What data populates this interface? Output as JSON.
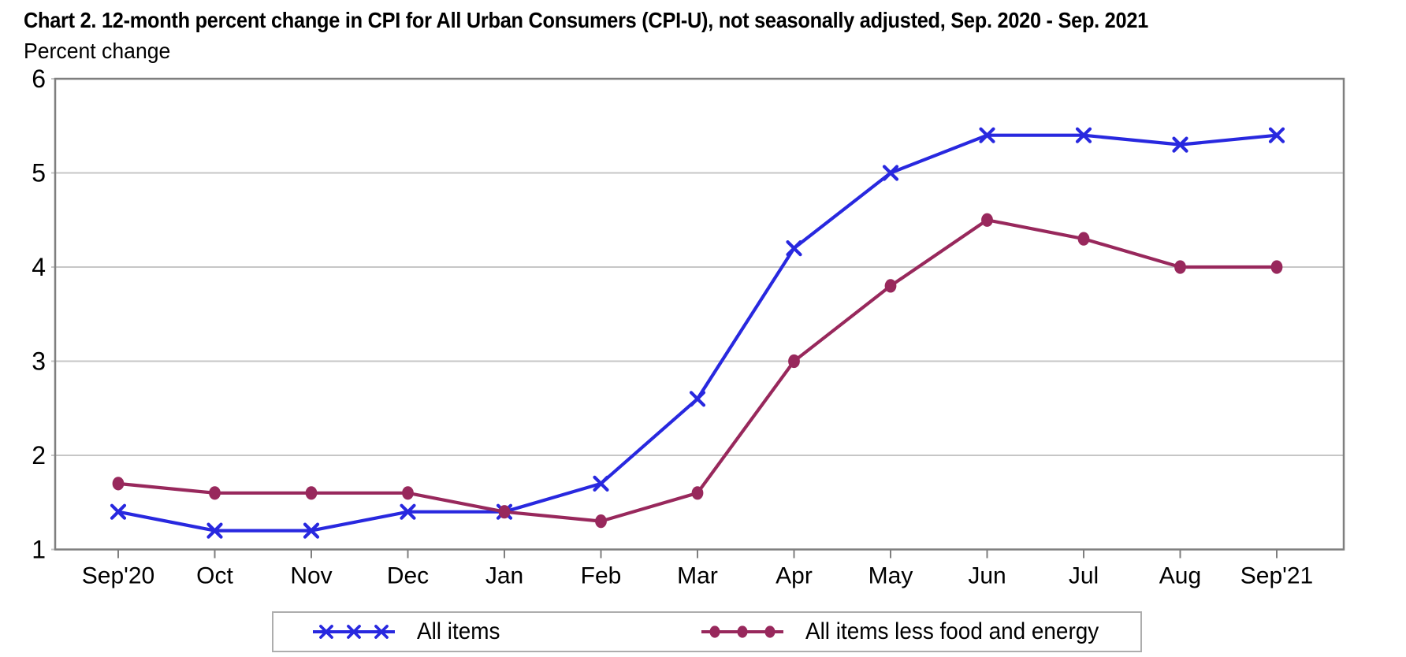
{
  "header": {
    "title": "Chart 2. 12-month percent change in CPI for All Urban Consumers (CPI-U), not seasonally adjusted, Sep. 2020 - Sep. 2021",
    "unit_label": "Percent change"
  },
  "chart_data": {
    "type": "line",
    "title": "Chart 2. 12-month percent change in CPI for All Urban Consumers (CPI-U), not seasonally adjusted, Sep. 2020 - Sep. 2021",
    "ylabel": "Percent change",
    "xlabel": "",
    "categories": [
      "Sep'20",
      "Oct",
      "Nov",
      "Dec",
      "Jan",
      "Feb",
      "Mar",
      "Apr",
      "May",
      "Jun",
      "Jul",
      "Aug",
      "Sep'21"
    ],
    "series": [
      {
        "name": "All items",
        "marker": "x",
        "color": "#2828df",
        "values": [
          1.4,
          1.2,
          1.2,
          1.4,
          1.4,
          1.7,
          2.6,
          4.2,
          5.0,
          5.4,
          5.4,
          5.3,
          5.4
        ]
      },
      {
        "name": "All items less food and energy",
        "marker": "dot",
        "color": "#98285c",
        "values": [
          1.7,
          1.6,
          1.6,
          1.6,
          1.4,
          1.3,
          1.6,
          3.0,
          3.8,
          4.5,
          4.3,
          4.0,
          4.0
        ]
      }
    ],
    "ylim": [
      1,
      6
    ],
    "yticks": [
      1,
      2,
      3,
      4,
      5,
      6
    ],
    "grid": true,
    "legend_position": "bottom"
  },
  "colors": {
    "grid": "#c6c6c6",
    "axis_border": "#7f7f7f",
    "text": "#000000",
    "legend_border": "#adadad",
    "background": "#ffffff"
  }
}
